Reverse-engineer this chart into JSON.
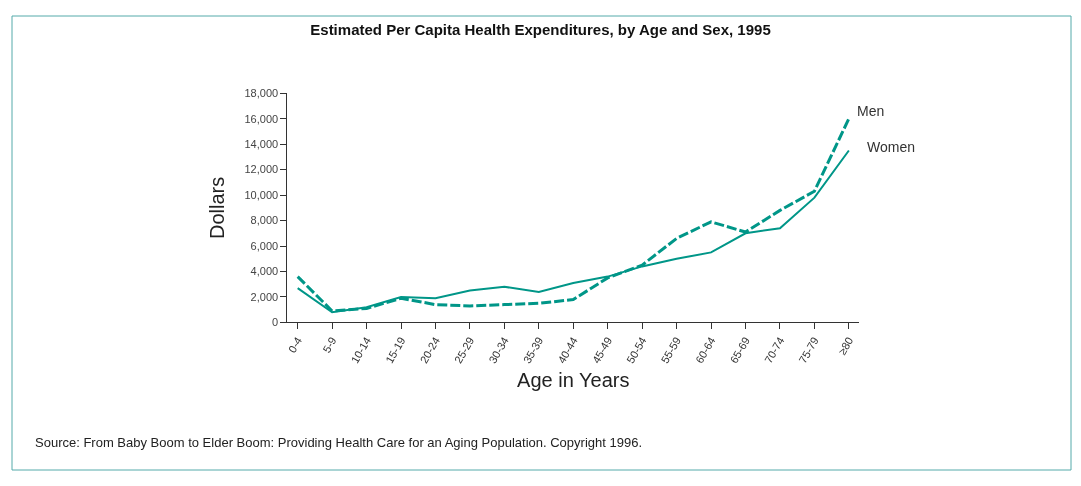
{
  "chart_data": {
    "type": "line",
    "title": "Estimated Per Capita Health Expenditures, by Age and Sex, 1995",
    "xlabel": "Age in Years",
    "ylabel": "Dollars",
    "categories": [
      "0-4",
      "5-9",
      "10-14",
      "15-19",
      "20-24",
      "25-29",
      "30-34",
      "35-39",
      "40-44",
      "45-49",
      "50-54",
      "55-59",
      "60-64",
      "65-69",
      "70-74",
      "75-79",
      "≥80"
    ],
    "series": [
      {
        "name": "Men",
        "color": "#009688",
        "line_style": "dashed",
        "values": [
          3600,
          900,
          1100,
          1900,
          1400,
          1300,
          1400,
          1500,
          1800,
          3500,
          4500,
          6600,
          7900,
          7100,
          8800,
          10300,
          16000
        ]
      },
      {
        "name": "Women",
        "color": "#009688",
        "line_style": "solid",
        "values": [
          2700,
          800,
          1200,
          2000,
          1900,
          2500,
          2800,
          2400,
          3100,
          3600,
          4400,
          5000,
          5500,
          7000,
          7400,
          9800,
          13500
        ]
      }
    ],
    "ylim": [
      0,
      18000
    ],
    "yticks": [
      {
        "value": 0,
        "label": "0"
      },
      {
        "value": 2000,
        "label": "2,000"
      },
      {
        "value": 4000,
        "label": "4,000"
      },
      {
        "value": 6000,
        "label": "6,000"
      },
      {
        "value": 8000,
        "label": "8,000"
      },
      {
        "value": 10000,
        "label": "10,000"
      },
      {
        "value": 12000,
        "label": "12,000"
      },
      {
        "value": 14000,
        "label": "14,000"
      },
      {
        "value": 16000,
        "label": "16,000"
      },
      {
        "value": 18000,
        "label": "18,000"
      }
    ],
    "legend": false,
    "marker": "none",
    "annotations": [
      "Source: From Baby Boom to Elder Boom: Providing Health Care for an Aging Population. Copyright 1996."
    ]
  }
}
